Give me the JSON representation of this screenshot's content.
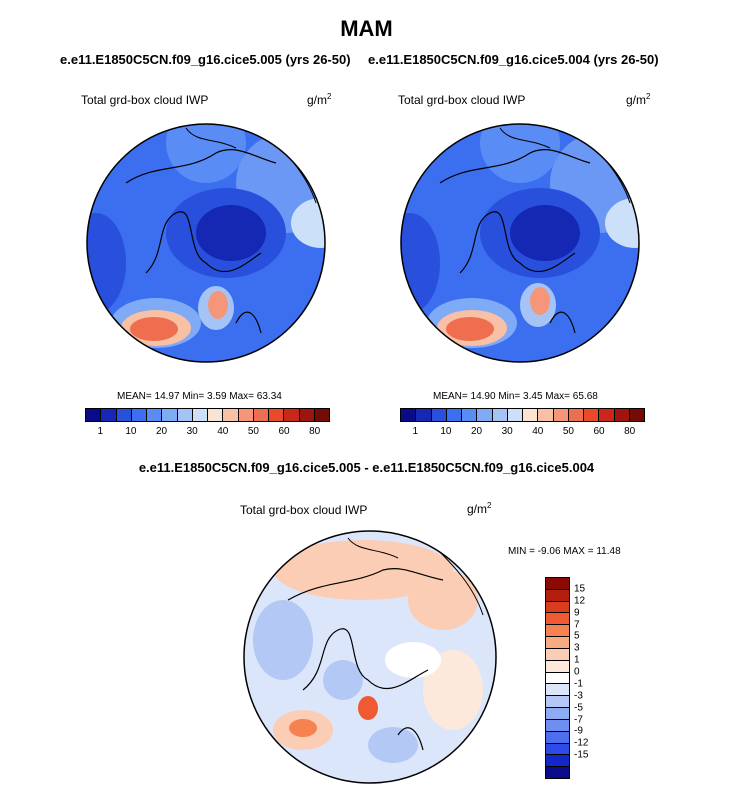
{
  "figure": {
    "season": "MAM",
    "left_case": "e.e11.E1850C5CN.f09_g16.cice5.005 (yrs 26-50)",
    "right_case": "e.e11.E1850C5CN.f09_g16.cice5.004 (yrs 26-50)",
    "diff_title": "e.e11.E1850C5CN.f09_g16.cice5.005 - e.e11.E1850C5CN.f09_g16.cice5.004"
  },
  "panels": {
    "left": {
      "variable": "Total grd-box cloud IWP",
      "units": "g/m",
      "units_exp": "2",
      "stats": "MEAN=  14.97  Min=    3.59  Max=  63.34"
    },
    "right": {
      "variable": "Total grd-box cloud IWP",
      "units": "g/m",
      "units_exp": "2",
      "stats": "MEAN=  14.90  Min=    3.45  Max=  65.68"
    },
    "diff": {
      "variable": "Total grd-box cloud IWP",
      "units": "g/m",
      "units_exp": "2",
      "stats": "MIN =  -9.06 MAX =  11.48"
    }
  },
  "colorbar_abs": {
    "colors": [
      "#0a0a8c",
      "#1428b4",
      "#2850dc",
      "#3c6ef0",
      "#5a8cf5",
      "#7faaf5",
      "#a5c4f5",
      "#cde0fa",
      "#fbe3d4",
      "#f8c0a4",
      "#f5967a",
      "#f06e50",
      "#e84a2c",
      "#c8281c",
      "#a01410",
      "#780a05"
    ],
    "tick_labels": [
      "1",
      "10",
      "20",
      "30",
      "40",
      "50",
      "60",
      "80"
    ]
  },
  "colorbar_diff": {
    "colors": [
      "#8c0a05",
      "#b41e0f",
      "#dc3c1e",
      "#f05a32",
      "#f58250",
      "#f8aa82",
      "#fbcdb4",
      "#fde8dc",
      "#ffffff",
      "#dce6fa",
      "#b4c8f5",
      "#8cabf0",
      "#6e8ef0",
      "#4e6ef0",
      "#2d4be6",
      "#1428c8",
      "#0a0a8c"
    ],
    "tick_labels": [
      "15",
      "12",
      "9",
      "7",
      "5",
      "3",
      "1",
      "0",
      "-1",
      "-3",
      "-5",
      "-7",
      "-9",
      "-12",
      "-15"
    ]
  }
}
